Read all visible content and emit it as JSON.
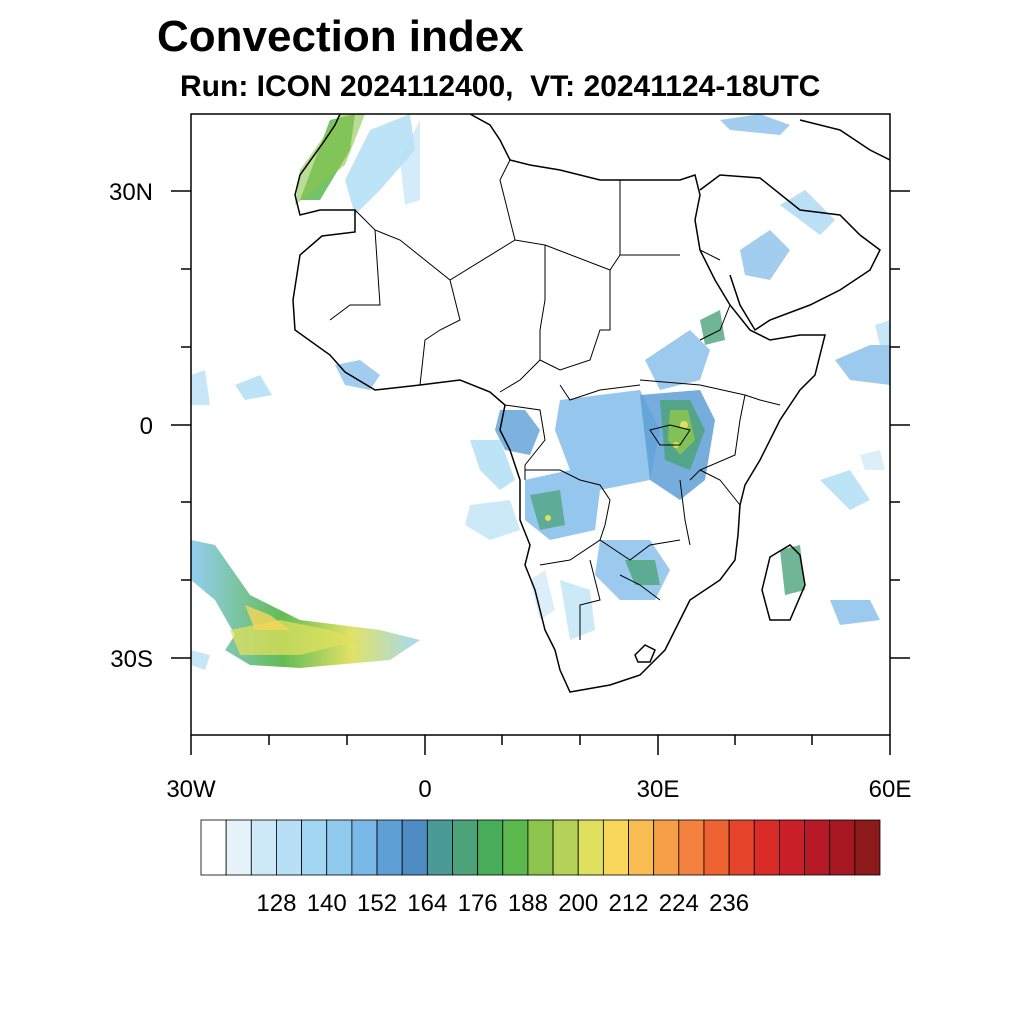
{
  "title": "Convection index",
  "subtitle": "Run: ICON 2024112400,  VT: 20241124-18UTC",
  "map": {
    "region": "Africa",
    "lon_range": [
      -30,
      60
    ],
    "lat_range": [
      -40,
      40
    ],
    "lat_tick_labels": [
      "30N",
      "0",
      "30S"
    ],
    "lon_tick_labels": [
      "30W",
      "0",
      "30E",
      "60E"
    ]
  },
  "colorbar": {
    "tick_labels": [
      "128",
      "140",
      "152",
      "164",
      "176",
      "188",
      "200",
      "212",
      "224",
      "236"
    ],
    "colors": [
      "#ffffff",
      "#e6f3fb",
      "#cde8f7",
      "#b7dff5",
      "#a1d7f3",
      "#8ecbef",
      "#7ab8e8",
      "#5e9fd6",
      "#4e8cc4",
      "#4a9a98",
      "#4ca37a",
      "#47ad5a",
      "#5bb84c",
      "#8cc44e",
      "#b4d158",
      "#dfe05e",
      "#f7d65a",
      "#f9bd52",
      "#f79f48",
      "#f4813d",
      "#ef6232",
      "#e6452b",
      "#d92c28",
      "#c91f28",
      "#b61a26",
      "#a51822",
      "#8c1a1a"
    ]
  }
}
